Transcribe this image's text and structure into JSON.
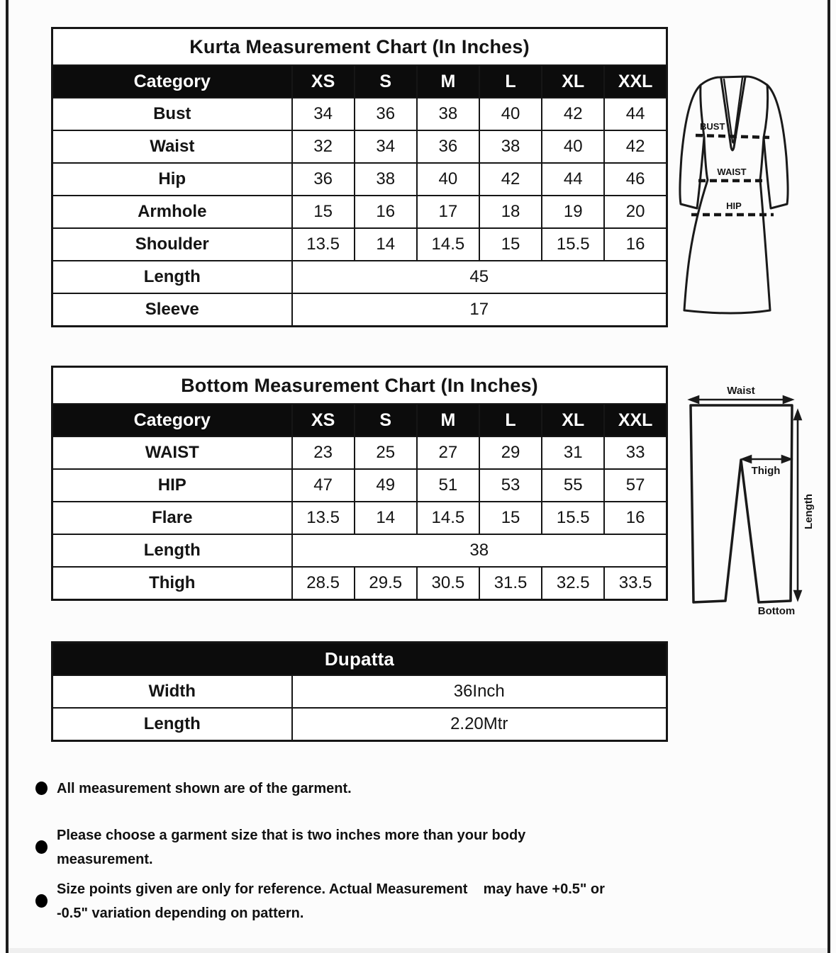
{
  "page": {
    "background": "#fcfcfc",
    "frame_color": "#1c1c1c",
    "header_band_color": "#0c0c0c"
  },
  "kurta_table": {
    "title": "Kurta Measurement Chart (In Inches)",
    "columns": [
      "Category",
      "XS",
      "S",
      "M",
      "L",
      "XL",
      "XXL"
    ],
    "rows": [
      {
        "label": "Bust",
        "values": [
          "34",
          "36",
          "38",
          "40",
          "42",
          "44"
        ]
      },
      {
        "label": "Waist",
        "values": [
          "32",
          "34",
          "36",
          "38",
          "40",
          "42"
        ]
      },
      {
        "label": "Hip",
        "values": [
          "36",
          "38",
          "40",
          "42",
          "44",
          "46"
        ]
      },
      {
        "label": "Armhole",
        "values": [
          "15",
          "16",
          "17",
          "18",
          "19",
          "20"
        ]
      },
      {
        "label": "Shoulder",
        "values": [
          "13.5",
          "14",
          "14.5",
          "15",
          "15.5",
          "16"
        ]
      },
      {
        "label": "Length",
        "span": "45"
      },
      {
        "label": "Sleeve",
        "span": "17"
      }
    ]
  },
  "bottom_table": {
    "title": "Bottom Measurement Chart (In Inches)",
    "columns": [
      "Category",
      "XS",
      "S",
      "M",
      "L",
      "XL",
      "XXL"
    ],
    "rows": [
      {
        "label": "WAIST",
        "values": [
          "23",
          "25",
          "27",
          "29",
          "31",
          "33"
        ]
      },
      {
        "label": "HIP",
        "values": [
          "47",
          "49",
          "51",
          "53",
          "55",
          "57"
        ]
      },
      {
        "label": "Flare",
        "values": [
          "13.5",
          "14",
          "14.5",
          "15",
          "15.5",
          "16"
        ]
      },
      {
        "label": "Length",
        "span": "38"
      },
      {
        "label": "Thigh",
        "values": [
          "28.5",
          "29.5",
          "30.5",
          "31.5",
          "32.5",
          "33.5"
        ]
      }
    ]
  },
  "dupatta_table": {
    "title": "Dupatta",
    "title_on_black": true,
    "rows": [
      {
        "label": "Width",
        "span": "36Inch"
      },
      {
        "label": "Length",
        "span": "2.20Mtr"
      }
    ]
  },
  "figures": {
    "kurta": {
      "bust": "BUST",
      "waist": "WAIST",
      "hip": "HIP"
    },
    "bottom": {
      "waist": "Waist",
      "thigh": "Thigh",
      "length": "Length",
      "bottom": "Bottom"
    }
  },
  "notes": [
    "All measurement shown are of the garment.",
    "Please choose a garment size that is two inches more than your body\nmeasurement.",
    "Size points given are only for reference. Actual Measurement    may have +0.5\" or\n-0.5\" variation depending on pattern."
  ]
}
